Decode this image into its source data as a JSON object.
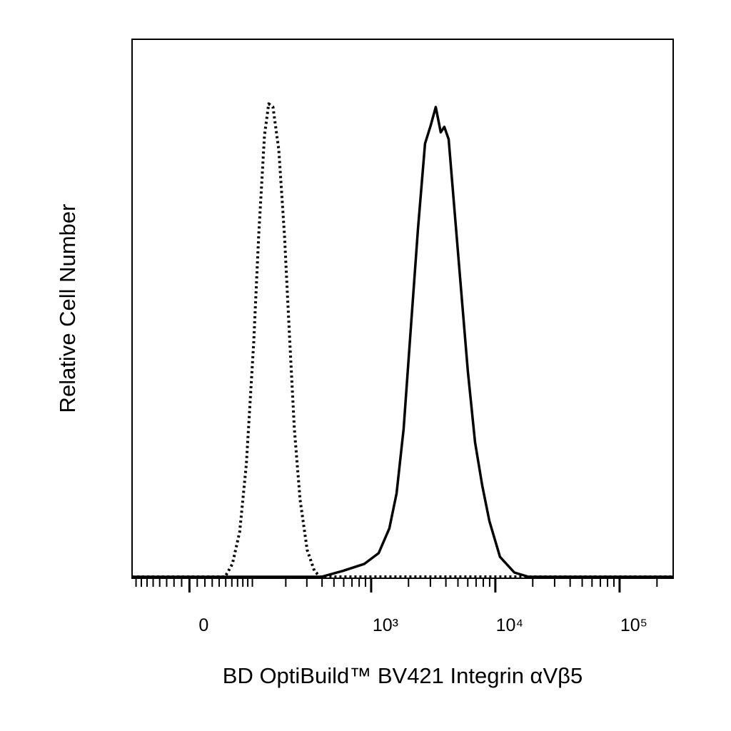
{
  "chart_data": {
    "type": "histogram-overlay",
    "x_label": "BD OptiBuild™ BV421 Integrin αVβ5",
    "y_label": "Relative Cell Number",
    "xscale": "biexponential",
    "xlim": [
      -88,
      270000
    ],
    "ylim": [
      0,
      100
    ],
    "xticks": [
      0,
      {
        "value": 1000,
        "label": "10³"
      },
      {
        "value": 10000,
        "label": "10⁴"
      },
      {
        "value": 100000,
        "label": "10⁵"
      }
    ],
    "xminorticks": [
      -80,
      -70,
      -60,
      -50,
      -40,
      -30,
      -20,
      -10,
      10,
      20,
      30,
      40,
      50,
      60,
      70,
      80,
      90,
      100,
      200,
      300,
      400,
      500,
      600,
      700,
      800,
      900,
      2000,
      3000,
      4000,
      5000,
      6000,
      7000,
      8000,
      9000,
      20000,
      30000,
      40000,
      50000,
      60000,
      70000,
      80000,
      90000,
      200000
    ],
    "series": [
      {
        "style": "dotted",
        "color": "#000000",
        "x": [
          -88,
          49,
          61,
          74,
          87,
          103,
          115,
          130,
          142,
          155,
          174,
          195,
          215,
          236,
          264,
          302,
          346,
          386,
          270000
        ],
        "values": [
          0,
          0,
          2.4,
          8.4,
          21.0,
          43.6,
          63.5,
          82.1,
          88.0,
          87.4,
          79.5,
          63.5,
          44.9,
          27.6,
          14.3,
          5.0,
          1.1,
          0,
          0
        ]
      },
      {
        "style": "solid",
        "color": "#000000",
        "x": [
          -88,
          396,
          591,
          881,
          1149,
          1401,
          1601,
          1827,
          2086,
          2382,
          2718,
          3022,
          3315,
          3636,
          3885,
          4209,
          4616,
          5268,
          6013,
          6866,
          7838,
          8949,
          10902,
          14212,
          18513,
          270000
        ],
        "values": [
          0,
          0,
          1.1,
          2.4,
          4.4,
          9.0,
          15.5,
          27.5,
          46.1,
          64.7,
          80.6,
          84.0,
          87.4,
          82.7,
          83.7,
          81.4,
          70.1,
          54.2,
          38.2,
          25.0,
          17.0,
          10.4,
          3.7,
          0.8,
          0,
          0
        ]
      }
    ]
  }
}
